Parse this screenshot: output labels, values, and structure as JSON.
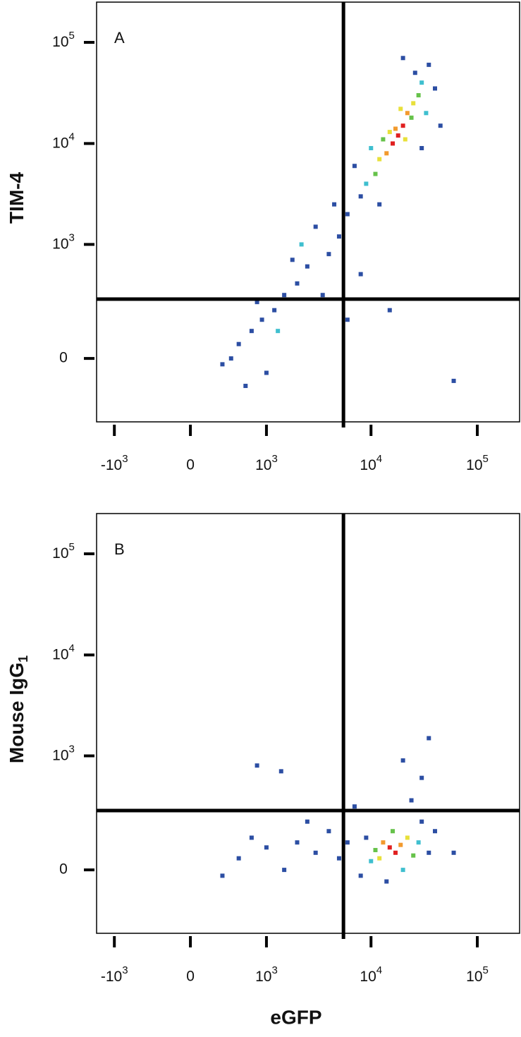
{
  "chart_data": [
    {
      "type": "scatter",
      "panel_label": "A",
      "ylabel": "TIM-4",
      "scale": "biexponential",
      "xlim": [
        -1500,
        250000
      ],
      "ylim": [
        -300,
        250000
      ],
      "xticks": [
        {
          "value": -1000,
          "label": "-10",
          "exponent": "3"
        },
        0,
        {
          "value": 1000,
          "label": "10",
          "exponent": "3"
        },
        {
          "value": 10000,
          "label": "10",
          "exponent": "4"
        },
        {
          "value": 100000,
          "label": "10",
          "exponent": "5"
        }
      ],
      "yticks": [
        0,
        {
          "value": 1000,
          "label": "10",
          "exponent": "3"
        },
        {
          "value": 10000,
          "label": "10",
          "exponent": "4"
        },
        {
          "value": 100000,
          "label": "10",
          "exponent": "5"
        }
      ],
      "gate": {
        "x": 5500,
        "y": 270
      },
      "x": [
        18000,
        20000,
        16000,
        22000,
        14000,
        25000,
        12000,
        17000,
        21000,
        15000,
        28000,
        11000,
        24000,
        13000,
        19000,
        30000,
        9000,
        33000,
        10000,
        26000,
        35000,
        8000,
        40000,
        20000,
        7000,
        45000,
        12000,
        30000,
        6000,
        5000,
        4000,
        3000,
        2500,
        2000,
        1500,
        1200,
        900,
        700,
        500,
        400,
        1000,
        800,
        1800,
        3500,
        6000,
        8000,
        600,
        2200,
        1300,
        4500,
        15000,
        60000,
        300
      ],
      "y": [
        12000,
        15000,
        10000,
        20000,
        8000,
        25000,
        7000,
        14000,
        11000,
        13000,
        30000,
        5000,
        18000,
        11000,
        22000,
        40000,
        4000,
        20000,
        9000,
        50000,
        60000,
        3000,
        35000,
        70000,
        6000,
        15000,
        2500,
        9000,
        2000,
        1200,
        800,
        1500,
        600,
        400,
        300,
        200,
        150,
        100,
        50,
        0,
        -50,
        250,
        700,
        300,
        150,
        500,
        -100,
        1000,
        100,
        2500,
        200,
        -80,
        -20
      ],
      "colors": [
        "#e02020",
        "#e02020",
        "#e02020",
        "#f29a2e",
        "#f29a2e",
        "#e8e03a",
        "#e8e03a",
        "#f29a2e",
        "#e8e03a",
        "#e8e03a",
        "#66c24a",
        "#66c24a",
        "#66c24a",
        "#66c24a",
        "#e8e03a",
        "#3fbfcf",
        "#3fbfcf",
        "#3fbfcf",
        "#3fbfcf",
        "#2c4ea3",
        "#2c4ea3",
        "#2c4ea3",
        "#2c4ea3",
        "#2c4ea3",
        "#2c4ea3",
        "#2c4ea3",
        "#2c4ea3",
        "#2c4ea3",
        "#2c4ea3",
        "#2c4ea3",
        "#2c4ea3",
        "#2c4ea3",
        "#2c4ea3",
        "#2c4ea3",
        "#2c4ea3",
        "#2c4ea3",
        "#2c4ea3",
        "#2c4ea3",
        "#2c4ea3",
        "#2c4ea3",
        "#2c4ea3",
        "#2c4ea3",
        "#2c4ea3",
        "#2c4ea3",
        "#2c4ea3",
        "#2c4ea3",
        "#2c4ea3",
        "#3fbfcf",
        "#3fbfcf",
        "#2c4ea3",
        "#2c4ea3",
        "#2c4ea3",
        "#2c4ea3"
      ]
    },
    {
      "type": "scatter",
      "panel_label": "B",
      "ylabel": "Mouse IgG",
      "ylabel_subscript": "1",
      "xlabel": "eGFP",
      "scale": "biexponential",
      "xlim": [
        -1500,
        250000
      ],
      "ylim": [
        -300,
        250000
      ],
      "xticks": [
        {
          "value": -1000,
          "label": "-10",
          "exponent": "3"
        },
        0,
        {
          "value": 1000,
          "label": "10",
          "exponent": "3"
        },
        {
          "value": 10000,
          "label": "10",
          "exponent": "4"
        },
        {
          "value": 100000,
          "label": "10",
          "exponent": "5"
        }
      ],
      "yticks": [
        0,
        {
          "value": 1000,
          "label": "10",
          "exponent": "3"
        },
        {
          "value": 10000,
          "label": "10",
          "exponent": "4"
        },
        {
          "value": 100000,
          "label": "10",
          "exponent": "5"
        }
      ],
      "gate": {
        "x": 5500,
        "y": 270
      },
      "x": [
        15000,
        17000,
        13000,
        19000,
        12000,
        22000,
        11000,
        25000,
        16000,
        10000,
        28000,
        20000,
        9000,
        30000,
        8000,
        35000,
        14000,
        40000,
        24000,
        30000,
        20000,
        35000,
        6000,
        5000,
        4000,
        3000,
        2000,
        1500,
        1000,
        700,
        500,
        300,
        2500,
        800,
        1400,
        60000,
        7000
      ],
      "y": [
        80,
        60,
        100,
        90,
        40,
        120,
        70,
        50,
        150,
        30,
        100,
        0,
        120,
        200,
        -20,
        60,
        -40,
        150,
        350,
        600,
        900,
        1500,
        100,
        40,
        150,
        60,
        100,
        0,
        80,
        120,
        40,
        -20,
        200,
        800,
        700,
        60,
        300
      ],
      "colors": [
        "#e02020",
        "#e02020",
        "#f29a2e",
        "#f29a2e",
        "#e8e03a",
        "#e8e03a",
        "#66c24a",
        "#66c24a",
        "#66c24a",
        "#3fbfcf",
        "#3fbfcf",
        "#3fbfcf",
        "#2c4ea3",
        "#2c4ea3",
        "#2c4ea3",
        "#2c4ea3",
        "#2c4ea3",
        "#2c4ea3",
        "#2c4ea3",
        "#2c4ea3",
        "#2c4ea3",
        "#2c4ea3",
        "#2c4ea3",
        "#2c4ea3",
        "#2c4ea3",
        "#2c4ea3",
        "#2c4ea3",
        "#2c4ea3",
        "#2c4ea3",
        "#2c4ea3",
        "#2c4ea3",
        "#2c4ea3",
        "#2c4ea3",
        "#2c4ea3",
        "#2c4ea3",
        "#2c4ea3",
        "#2c4ea3"
      ]
    }
  ]
}
